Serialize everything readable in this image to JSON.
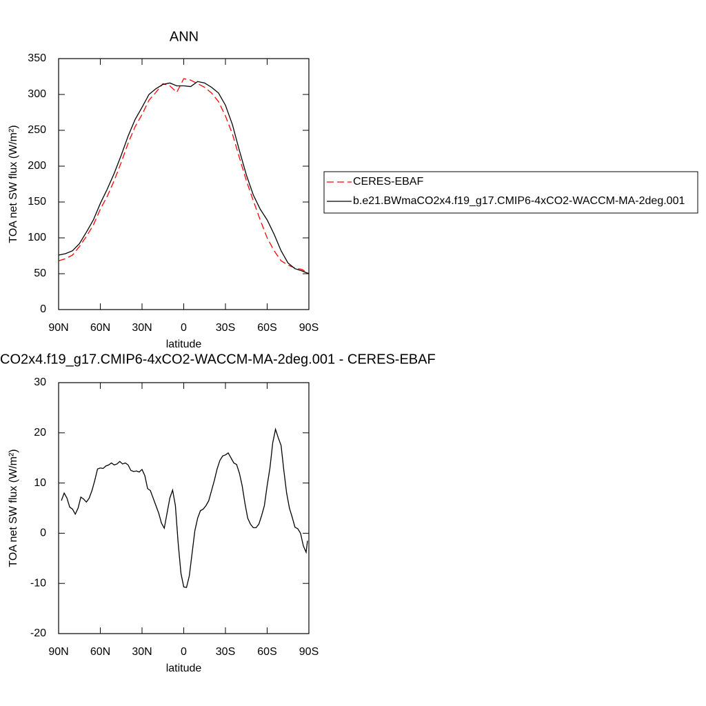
{
  "chart_data": [
    {
      "type": "line",
      "title": "ANN",
      "xlabel": "latitude",
      "ylabel": "TOA net SW flux (W/m²)",
      "x": [
        90,
        85,
        80,
        75,
        70,
        65,
        60,
        55,
        50,
        45,
        40,
        35,
        30,
        25,
        20,
        15,
        10,
        5,
        0,
        -5,
        -10,
        -15,
        -20,
        -25,
        -30,
        -35,
        -40,
        -45,
        -50,
        -55,
        -60,
        -65,
        -70,
        -75,
        -80,
        -85,
        -90
      ],
      "series": [
        {
          "name": "CERES-EBAF",
          "color": "#ff0000",
          "dash": "dashed",
          "values": [
            68,
            71,
            76,
            88,
            102,
            118,
            140,
            158,
            180,
            205,
            232,
            255,
            272,
            292,
            303,
            315,
            312,
            303,
            322,
            320,
            315,
            310,
            302,
            290,
            270,
            245,
            212,
            180,
            152,
            125,
            100,
            82,
            68,
            62,
            58,
            56,
            50
          ]
        },
        {
          "name": "b.e21.BWmaCO2x4.f19_g17.CMIP6-4xCO2-WACCM-MA-2deg.001",
          "color": "#000000",
          "dash": "solid",
          "values": [
            76,
            78,
            82,
            92,
            108,
            125,
            148,
            168,
            190,
            215,
            242,
            265,
            282,
            300,
            308,
            314,
            316,
            312,
            312,
            311,
            318,
            316,
            310,
            302,
            285,
            258,
            222,
            188,
            160,
            140,
            125,
            105,
            82,
            65,
            57,
            54,
            50
          ]
        }
      ],
      "xlim": [
        90,
        -90
      ],
      "xticks": [
        {
          "value": 90,
          "label": "90N"
        },
        {
          "value": 60,
          "label": "60N"
        },
        {
          "value": 30,
          "label": "30N"
        },
        0,
        {
          "value": -30,
          "label": "30S"
        },
        {
          "value": -60,
          "label": "60S"
        },
        {
          "value": -90,
          "label": "90S"
        }
      ],
      "ylim": [
        0,
        350
      ],
      "yticks": [
        0,
        50,
        100,
        150,
        200,
        250,
        300,
        350
      ],
      "legend": "outside right"
    },
    {
      "type": "line",
      "title": "CO2x4.f19_g17.CMIP6-4xCO2-WACCM-MA-2deg.001 - CERES-EBAF",
      "xlabel": "latitude",
      "ylabel": "TOA net SW flux (W/m²)",
      "x": [
        88,
        86,
        84,
        82,
        80,
        78,
        76,
        74,
        72,
        70,
        68,
        66,
        64,
        62,
        60,
        58,
        56,
        54,
        52,
        50,
        48,
        46,
        44,
        42,
        40,
        38,
        36,
        34,
        32,
        30,
        28,
        26,
        24,
        22,
        20,
        18,
        16,
        14,
        12,
        10,
        8,
        6,
        4,
        2,
        0,
        -2,
        -4,
        -6,
        -8,
        -10,
        -12,
        -14,
        -16,
        -18,
        -20,
        -22,
        -24,
        -26,
        -28,
        -30,
        -32,
        -34,
        -36,
        -38,
        -40,
        -42,
        -44,
        -46,
        -48,
        -50,
        -52,
        -54,
        -56,
        -58,
        -60,
        -62,
        -64,
        -66,
        -68,
        -70,
        -72,
        -74,
        -76,
        -78,
        -80,
        -82,
        -84,
        -86,
        -88,
        -89
      ],
      "series": [
        {
          "color": "#000000",
          "dash": "solid",
          "values": [
            6.5,
            8,
            7,
            5.2,
            4.8,
            3.8,
            5,
            7.2,
            6.8,
            6.2,
            7,
            8.5,
            10.5,
            12.8,
            13,
            12.9,
            13.4,
            13.6,
            14,
            13.6,
            13.8,
            14.3,
            13.8,
            14,
            13.6,
            12.5,
            12.3,
            12.4,
            12.2,
            12.7,
            11.5,
            8.9,
            8.5,
            7,
            5.5,
            4,
            2,
            1,
            4,
            7,
            8.6,
            5.5,
            -2,
            -8,
            -10.7,
            -10.8,
            -8.5,
            -4,
            0.5,
            3,
            4.5,
            4.8,
            5.5,
            6.5,
            8.5,
            10.5,
            12.8,
            14.5,
            15.4,
            15.6,
            16,
            15,
            14,
            13.7,
            12,
            9.5,
            6,
            3,
            1.8,
            1.1,
            1.1,
            1.8,
            3.5,
            5.5,
            9.5,
            13,
            18,
            20.7,
            19,
            17.5,
            12.5,
            8,
            5,
            3.2,
            1.2,
            0.9,
            0,
            -2.5,
            -3.8,
            -1.5
          ]
        }
      ],
      "xlim": [
        90,
        -90
      ],
      "xticks": [
        {
          "value": 90,
          "label": "90N"
        },
        {
          "value": 60,
          "label": "60N"
        },
        {
          "value": 30,
          "label": "30N"
        },
        0,
        {
          "value": -30,
          "label": "30S"
        },
        {
          "value": -60,
          "label": "60S"
        },
        {
          "value": -90,
          "label": "90S"
        }
      ],
      "ylim": [
        -20,
        30
      ],
      "yticks": [
        -20,
        -10,
        0,
        10,
        20,
        30
      ]
    }
  ]
}
